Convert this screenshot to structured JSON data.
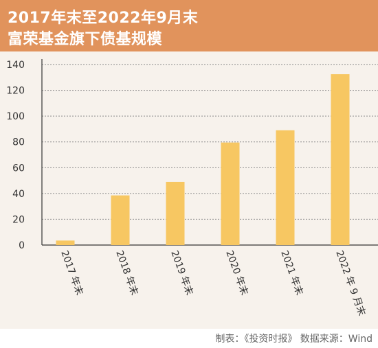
{
  "header": {
    "title_line1": "2017年末至2022年9月末",
    "title_line2": "富荣基金旗下债基规模",
    "background_color": "#e1935c"
  },
  "footer": {
    "source": "制表：《投资时报》 数据来源：Wind"
  },
  "chart_data": {
    "type": "bar",
    "title": "2017年末至2022年9月末富荣基金旗下债基规模",
    "categories": [
      "2017 年末",
      "2018 年末",
      "2019 年末",
      "2020 年末",
      "2021 年末",
      "2022 年 9 月末"
    ],
    "values": [
      3.5,
      38.5,
      49,
      79.5,
      89,
      132.5
    ],
    "xlabel": "",
    "ylabel": "",
    "ylim": [
      0,
      140
    ],
    "yticks": [
      0,
      20,
      40,
      60,
      80,
      100,
      120,
      140
    ],
    "grid": true,
    "legend": "none",
    "bar_color": "#f7c762",
    "grid_color": "#8a8a8a",
    "background_color": "#f7f2ec"
  }
}
